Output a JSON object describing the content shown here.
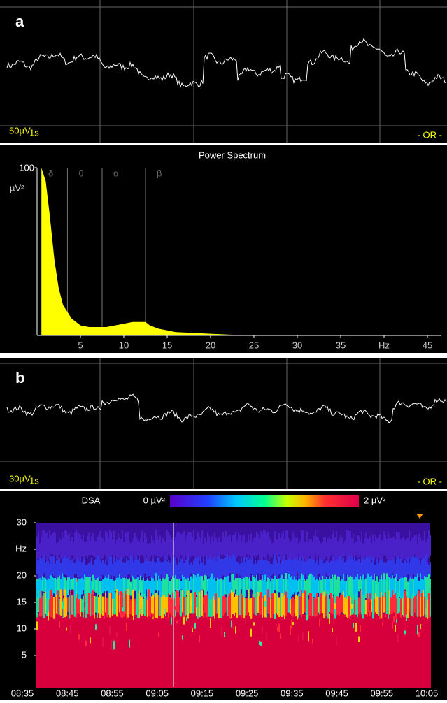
{
  "panel_a": {
    "label": "a",
    "eeg": {
      "scale": "50µV",
      "time": "1s",
      "montage": "- OR -"
    },
    "spectrum": {
      "type": "area",
      "title": "Power Spectrum",
      "y_unit": "µV²",
      "ylim": [
        0,
        100
      ],
      "yticks": [
        100
      ],
      "xlim": [
        0,
        45
      ],
      "xticks": [
        5,
        10,
        15,
        20,
        25,
        30,
        35,
        {
          "value": 40,
          "label": "Hz"
        },
        45
      ],
      "bands": [
        {
          "label": "δ",
          "upper": 3.5
        },
        {
          "label": "θ",
          "upper": 7.5
        },
        {
          "label": "α",
          "upper": 12.5
        },
        {
          "label": "β"
        }
      ],
      "color": "#ffff00",
      "x": [
        0.5,
        1,
        1.5,
        2,
        2.5,
        3,
        3.5,
        4,
        5,
        6,
        7,
        8,
        9,
        10,
        11,
        12,
        12.5,
        13,
        14,
        15,
        16,
        18,
        20,
        22,
        25
      ],
      "values": [
        100,
        92,
        70,
        45,
        28,
        18,
        14,
        10,
        6,
        5,
        5,
        5,
        6,
        7,
        8,
        8,
        8,
        6,
        4,
        3,
        2,
        1.5,
        1,
        0.5,
        0
      ]
    }
  },
  "panel_b": {
    "label": "b",
    "eeg": {
      "scale": "30µV",
      "time": "1s",
      "montage": "- OR -"
    },
    "dsa": {
      "title": "DSA",
      "scale_min": "0 µV²",
      "scale_max": "2 µV²",
      "ylim": [
        0,
        30
      ],
      "yticks": [
        30,
        {
          "value": 25,
          "label": "Hz"
        },
        20,
        15,
        10,
        5
      ],
      "categories": [
        "08:35",
        "08:45",
        "08:55",
        "09:05",
        "09:15",
        "09:25",
        "09:35",
        "09:45",
        "09:55",
        "10:05"
      ]
    }
  }
}
